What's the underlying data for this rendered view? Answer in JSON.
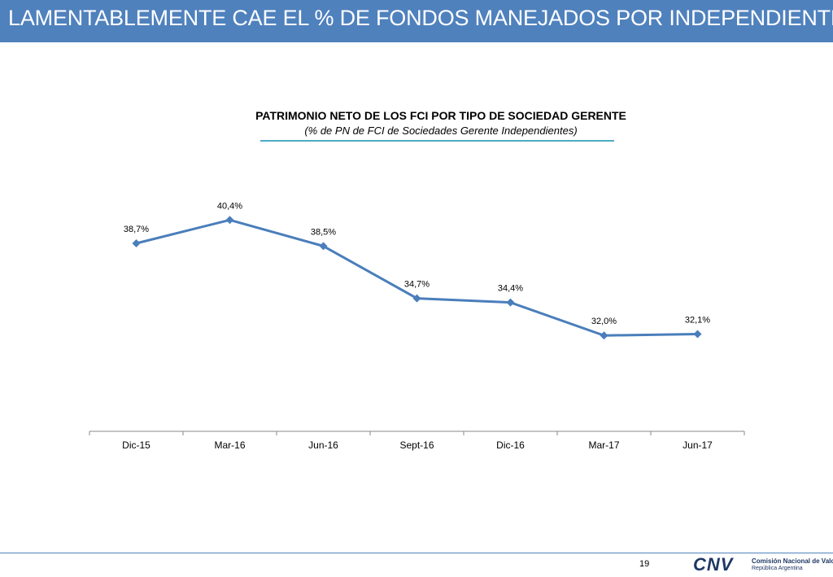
{
  "header": {
    "title": "LAMENTABLEMENTE CAE EL % DE FONDOS MANEJADOS POR INDEPENDIENTES"
  },
  "colors": {
    "header_bg": "#4f81bd",
    "series": "#4a7ebb",
    "title_underline": "#4bacc6"
  },
  "chart_data": {
    "type": "line",
    "title": "PATRIMONIO NETO DE LOS FCI POR TIPO DE SOCIEDAD GERENTE",
    "subtitle": "(% de PN de FCI de Sociedades Gerente Independientes)",
    "categories": [
      "Dic-15",
      "Mar-16",
      "Jun-16",
      "Sept-16",
      "Dic-16",
      "Mar-17",
      "Jun-17"
    ],
    "values": [
      38.7,
      40.4,
      38.5,
      34.7,
      34.4,
      32.0,
      32.1
    ],
    "data_labels": [
      "38,7%",
      "40,4%",
      "38,5%",
      "34,7%",
      "34,4%",
      "32,0%",
      "32,1%"
    ],
    "marker": "diamond",
    "grid": false,
    "legend": "none"
  },
  "footer": {
    "page_number": "19",
    "logo_text": "CNV",
    "org_name": "Comisión Nacional de Valores",
    "org_sub": "República Argentina"
  }
}
